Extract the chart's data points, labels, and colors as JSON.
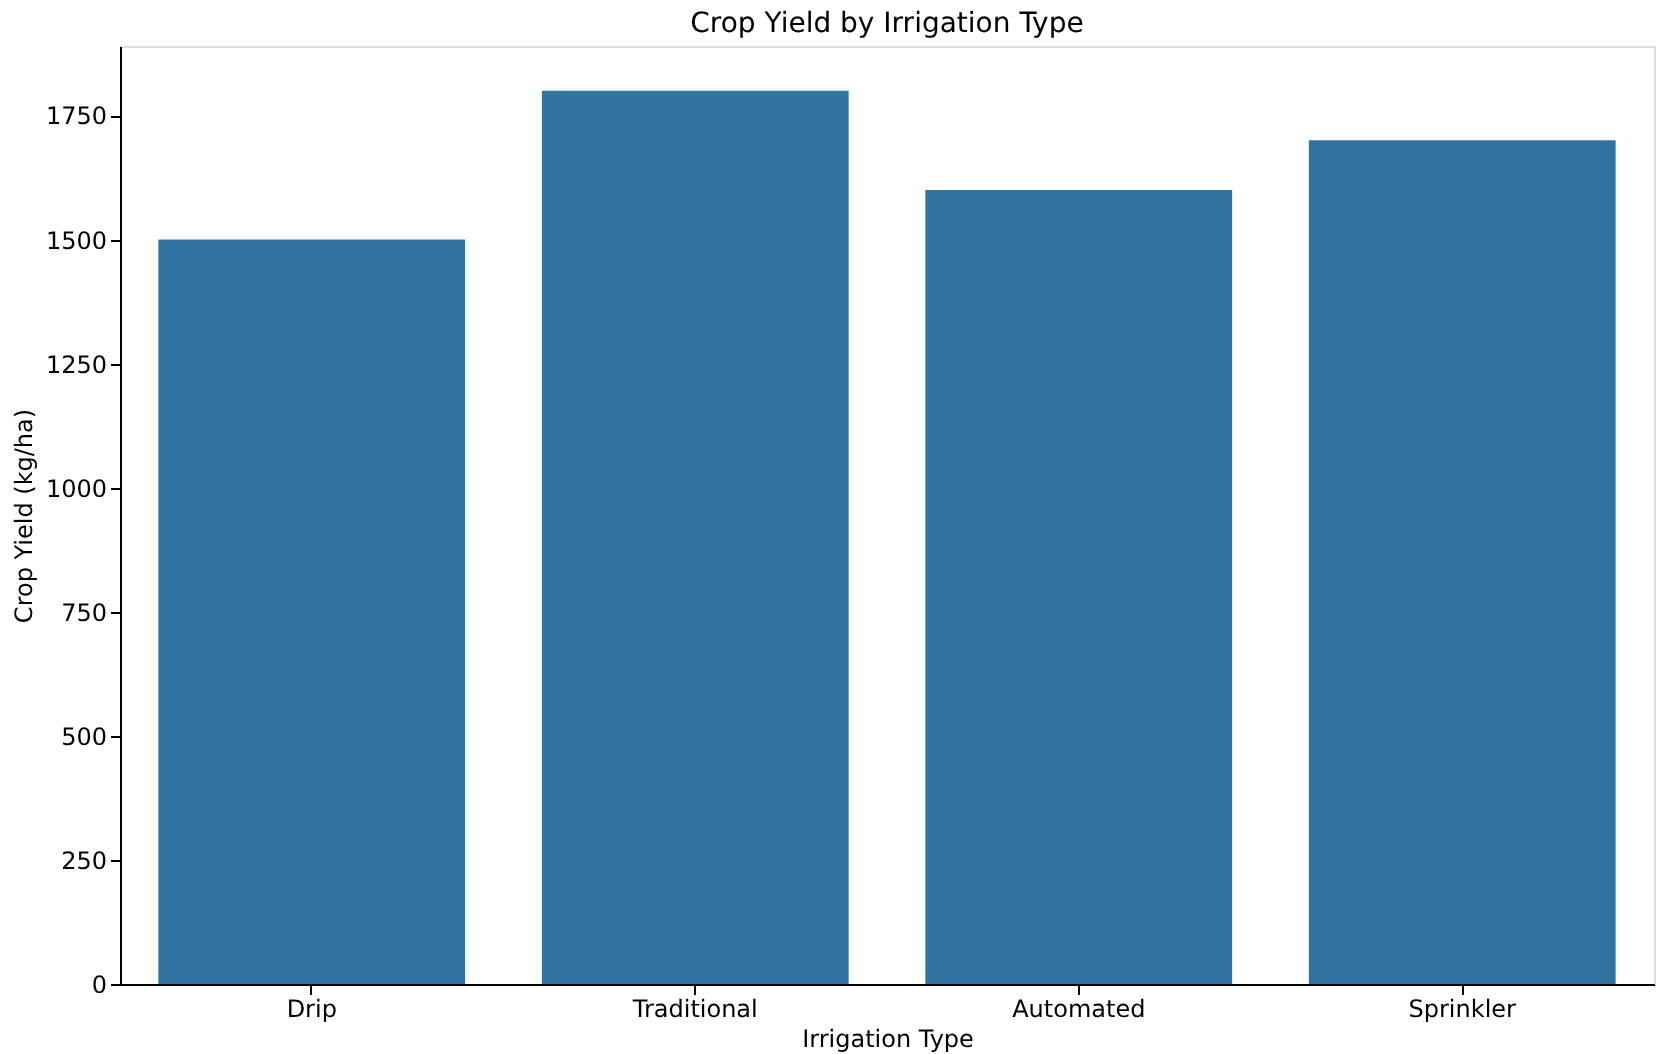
{
  "chart_data": {
    "type": "bar",
    "title": "Crop Yield by Irrigation Type",
    "xlabel": "Irrigation Type",
    "ylabel": "Crop Yield (kg/ha)",
    "categories": [
      "Drip",
      "Traditional",
      "Automated",
      "Sprinkler"
    ],
    "values": [
      1500,
      1800,
      1600,
      1700
    ],
    "color": "#3274a1",
    "ylim": [
      0,
      1890
    ],
    "yticks": [
      0,
      250,
      500,
      750,
      1000,
      1250,
      1500,
      1750
    ],
    "grid": false
  }
}
